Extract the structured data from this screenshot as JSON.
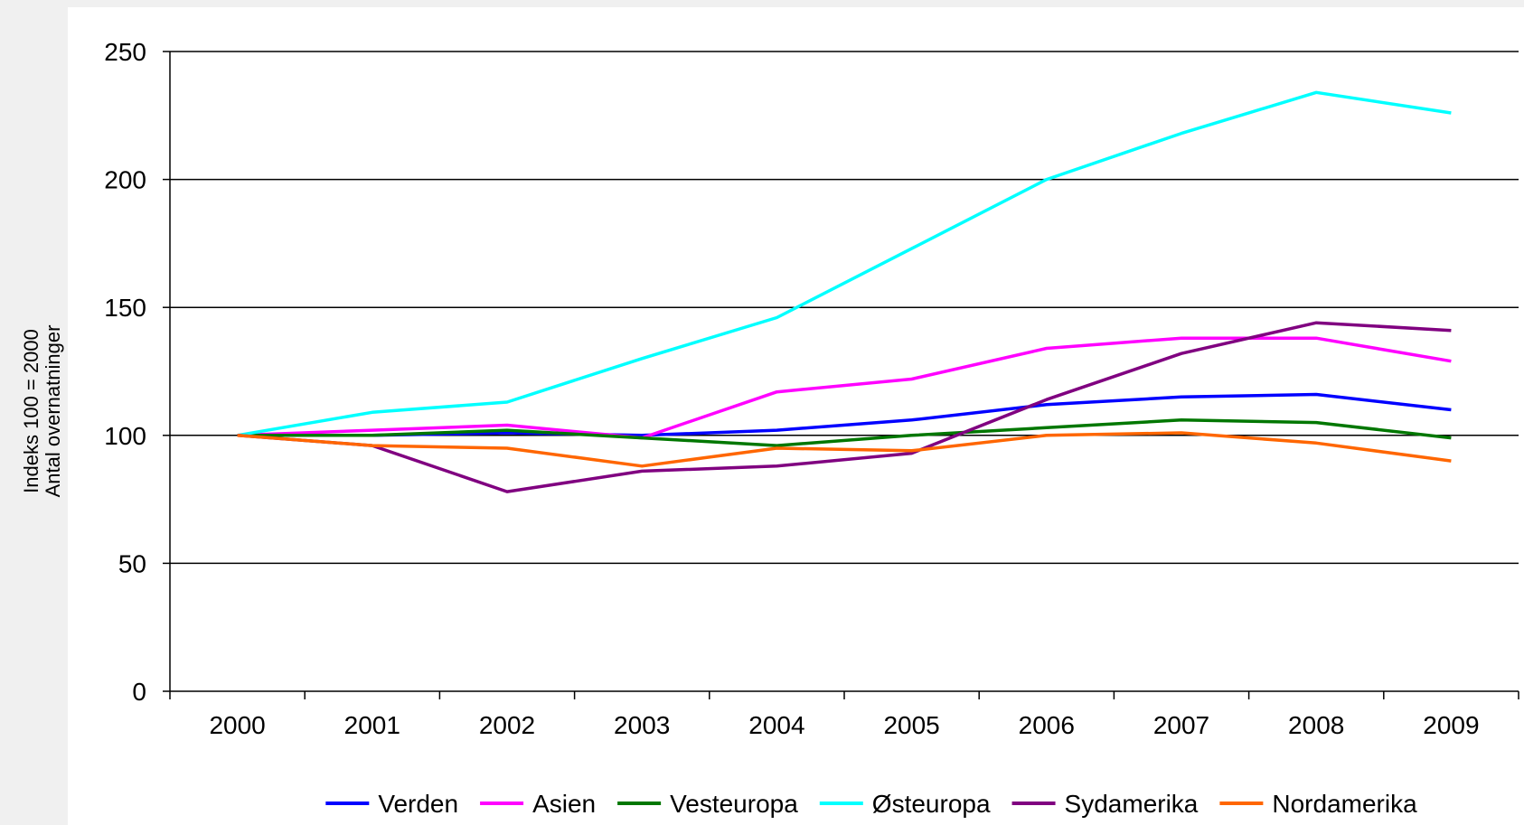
{
  "chart_data": {
    "type": "line",
    "title": "",
    "ylabel_lines": [
      "Indeks 100 = 2000",
      "Antal overnatninger"
    ],
    "xlabel": "",
    "categories": [
      "2000",
      "2001",
      "2002",
      "2003",
      "2004",
      "2005",
      "2006",
      "2007",
      "2008",
      "2009"
    ],
    "ylim": [
      0,
      250
    ],
    "yticks": [
      0,
      50,
      100,
      150,
      200,
      250
    ],
    "grid": true,
    "legend_position": "bottom",
    "series": [
      {
        "name": "Verden",
        "color": "#0000ff",
        "values": [
          100,
          100,
          101,
          100,
          102,
          106,
          112,
          115,
          116,
          110
        ]
      },
      {
        "name": "Asien",
        "color": "#ff00ff",
        "values": [
          100,
          102,
          104,
          99,
          117,
          122,
          134,
          138,
          138,
          129
        ]
      },
      {
        "name": "Vesteuropa",
        "color": "#007700",
        "values": [
          100,
          100,
          102,
          99,
          96,
          100,
          103,
          106,
          105,
          99
        ]
      },
      {
        "name": "Østeuropa",
        "color": "#00ffff",
        "values": [
          100,
          109,
          113,
          130,
          146,
          173,
          200,
          218,
          234,
          226
        ]
      },
      {
        "name": "Sydamerika",
        "color": "#800080",
        "values": [
          100,
          96,
          78,
          86,
          88,
          93,
          114,
          132,
          144,
          141
        ]
      },
      {
        "name": "Nordamerika",
        "color": "#ff6600",
        "values": [
          100,
          96,
          95,
          88,
          95,
          94,
          100,
          101,
          97,
          90
        ]
      }
    ]
  }
}
